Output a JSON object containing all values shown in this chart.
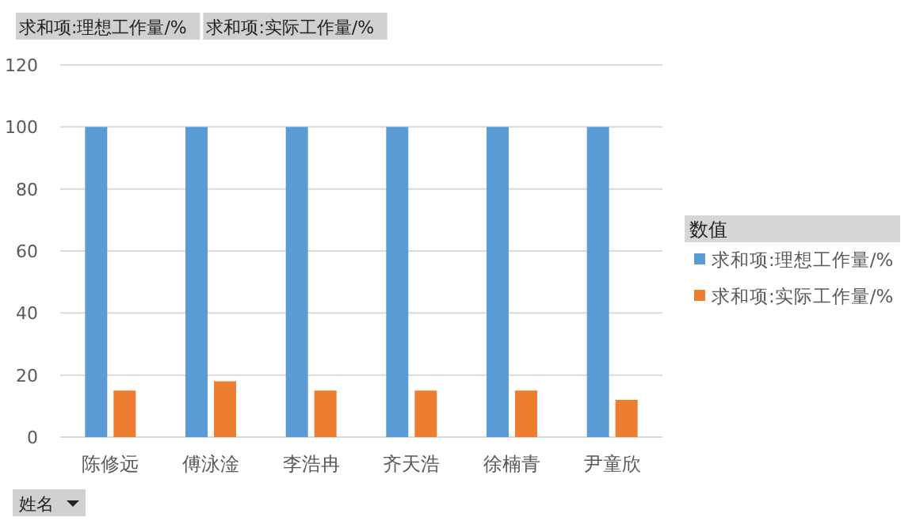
{
  "chart_data": {
    "type": "bar",
    "categories": [
      "陈修远",
      "傅泳淦",
      "李浩冉",
      "齐天浩",
      "徐楠青",
      "尹童欣"
    ],
    "series": [
      {
        "name": "求和项:理想工作量/%",
        "color": "#5b9bd5",
        "values": [
          100,
          100,
          100,
          100,
          100,
          100
        ]
      },
      {
        "name": "求和项:实际工作量/%",
        "color": "#ed7d31",
        "values": [
          15,
          18,
          15,
          15,
          15,
          12
        ]
      }
    ],
    "ylim": [
      0,
      120
    ],
    "yticks": [
      0,
      20,
      40,
      60,
      80,
      100,
      120
    ],
    "grid": "y",
    "legend": "right",
    "legend_title": "数值",
    "xlabel": "姓名",
    "annotations": [
      "求和项:理想工作量/%",
      "求和项:实际工作量/%"
    ]
  }
}
